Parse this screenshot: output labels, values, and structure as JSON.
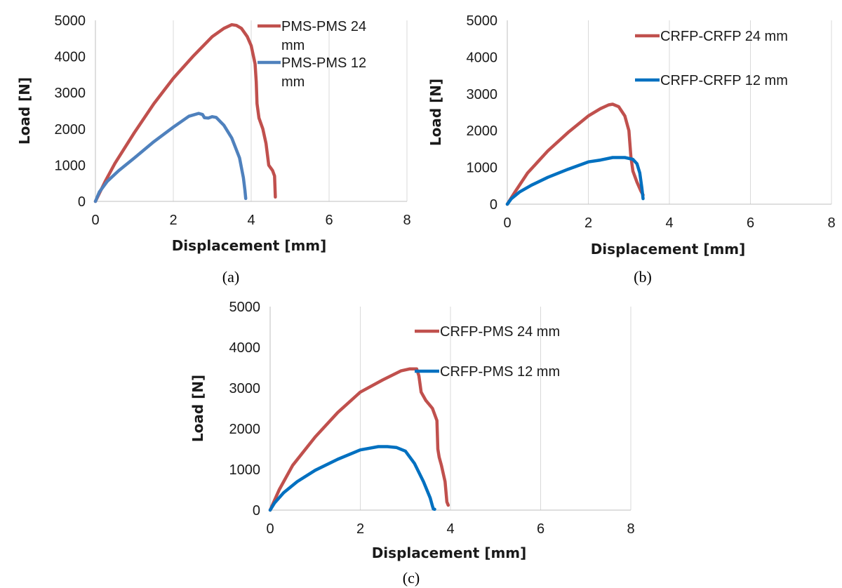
{
  "chart_data": [
    {
      "type": "line",
      "caption": "(a)",
      "xlabel": "Displacement [mm]",
      "ylabel": "Load [N]",
      "xlim": [
        0,
        8
      ],
      "ylim": [
        0,
        5000
      ],
      "xticks": [
        "0",
        "2",
        "4",
        "6",
        "8"
      ],
      "yticks": [
        "0",
        "1000",
        "2000",
        "3000",
        "4000",
        "5000"
      ],
      "grid": "vertical",
      "legend_position": "top-right",
      "series": [
        {
          "name_lines": [
            "PMS-PMS 24",
            "mm"
          ],
          "color": "#c0504d",
          "x": [
            0,
            0.25,
            0.5,
            1.0,
            1.5,
            2.0,
            2.5,
            3.0,
            3.3,
            3.5,
            3.62,
            3.75,
            3.9,
            4.0,
            4.1,
            4.13,
            4.15,
            4.2,
            4.3,
            4.38,
            4.45,
            4.55,
            4.6,
            4.62
          ],
          "y": [
            0,
            550,
            1050,
            1900,
            2700,
            3400,
            4000,
            4550,
            4780,
            4880,
            4860,
            4780,
            4550,
            4300,
            3800,
            3300,
            2700,
            2300,
            2000,
            1600,
            1000,
            850,
            700,
            120
          ]
        },
        {
          "name_lines": [
            "PMS-PMS 12",
            "mm"
          ],
          "color": "#4f81bd",
          "x": [
            0,
            0.1,
            0.3,
            0.6,
            1.0,
            1.5,
            2.0,
            2.4,
            2.65,
            2.75,
            2.8,
            2.9,
            3.0,
            3.1,
            3.3,
            3.5,
            3.7,
            3.8,
            3.84,
            3.86
          ],
          "y": [
            0,
            260,
            550,
            850,
            1200,
            1650,
            2050,
            2350,
            2430,
            2400,
            2310,
            2300,
            2340,
            2320,
            2100,
            1750,
            1200,
            650,
            300,
            80
          ]
        }
      ]
    },
    {
      "type": "line",
      "caption": "(b)",
      "xlabel": "Displacement [mm]",
      "ylabel": "Load [N]",
      "xlim": [
        0,
        8
      ],
      "ylim": [
        0,
        5000
      ],
      "xticks": [
        "0",
        "2",
        "4",
        "6",
        "8"
      ],
      "yticks": [
        "0",
        "1000",
        "2000",
        "3000",
        "4000",
        "5000"
      ],
      "grid": "vertical",
      "legend_position": "top-right",
      "series": [
        {
          "name_lines": [
            "CRFP-CRFP 24 mm"
          ],
          "color": "#c0504d",
          "x": [
            0,
            0.2,
            0.5,
            1.0,
            1.5,
            2.0,
            2.3,
            2.5,
            2.6,
            2.75,
            2.9,
            3.0,
            3.05,
            3.1,
            3.2,
            3.3,
            3.35
          ],
          "y": [
            0,
            350,
            850,
            1450,
            1950,
            2400,
            2600,
            2700,
            2720,
            2650,
            2400,
            2000,
            1300,
            900,
            600,
            350,
            250
          ]
        },
        {
          "name_lines": [
            "CRFP-CRFP 12 mm"
          ],
          "color": "#0070c0",
          "x": [
            0,
            0.1,
            0.3,
            0.6,
            1.0,
            1.5,
            2.0,
            2.3,
            2.6,
            2.9,
            3.1,
            3.2,
            3.27,
            3.32,
            3.35
          ],
          "y": [
            0,
            150,
            330,
            520,
            730,
            950,
            1150,
            1200,
            1270,
            1270,
            1220,
            1100,
            850,
            450,
            150
          ]
        }
      ]
    },
    {
      "type": "line",
      "caption": "(c)",
      "xlabel": "Displacement [mm]",
      "ylabel": "Load [N]",
      "xlim": [
        0,
        8
      ],
      "ylim": [
        0,
        5000
      ],
      "xticks": [
        "0",
        "2",
        "4",
        "6",
        "8"
      ],
      "yticks": [
        "0",
        "1000",
        "2000",
        "3000",
        "4000",
        "5000"
      ],
      "grid": "vertical",
      "legend_position": "top-right",
      "series": [
        {
          "name_lines": [
            "CRFP-PMS 24 mm"
          ],
          "color": "#c0504d",
          "x": [
            0,
            0.2,
            0.5,
            1.0,
            1.5,
            2.0,
            2.5,
            2.9,
            3.1,
            3.25,
            3.3,
            3.35,
            3.45,
            3.6,
            3.7,
            3.72,
            3.75,
            3.8,
            3.88,
            3.92,
            3.95
          ],
          "y": [
            0,
            500,
            1100,
            1800,
            2400,
            2900,
            3200,
            3420,
            3470,
            3470,
            3300,
            2900,
            2700,
            2500,
            2200,
            1500,
            1300,
            1100,
            700,
            200,
            120
          ]
        },
        {
          "name_lines": [
            "CRFP-PMS 12 mm"
          ],
          "color": "#0070c0",
          "x": [
            0,
            0.1,
            0.3,
            0.6,
            1.0,
            1.5,
            2.0,
            2.4,
            2.6,
            2.8,
            3.0,
            3.2,
            3.4,
            3.55,
            3.6,
            3.62,
            3.65
          ],
          "y": [
            0,
            180,
            430,
            700,
            980,
            1250,
            1480,
            1560,
            1560,
            1540,
            1450,
            1150,
            700,
            300,
            100,
            30,
            20
          ]
        }
      ]
    }
  ]
}
